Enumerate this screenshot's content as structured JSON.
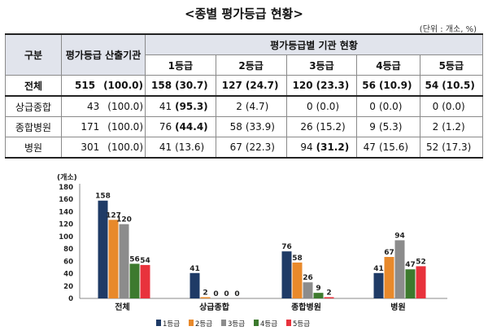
{
  "title": "<종별 평가등급 현황>",
  "unit": "(단위 : 개소, %)",
  "table": {
    "col_category": "구분",
    "col_total": "평가등급 산출기관",
    "col_group": "평가등급별 기관 현황",
    "grades": [
      "1등급",
      "2등급",
      "3등급",
      "4등급",
      "5등급"
    ],
    "rows": [
      {
        "label": "전체",
        "total": "515",
        "total_pct": "(100.0)",
        "cells": [
          [
            "158",
            "(30.7)"
          ],
          [
            "127",
            "(24.7)"
          ],
          [
            "120",
            "(23.3)"
          ],
          [
            "56",
            "(10.9)"
          ],
          [
            "54",
            "(10.5)"
          ]
        ]
      },
      {
        "label": "상급종합",
        "total": "43",
        "total_pct": "(100.0)",
        "cells": [
          [
            "41",
            "(95.3)"
          ],
          [
            "2",
            "(4.7)"
          ],
          [
            "0",
            "(0.0)"
          ],
          [
            "0",
            "(0.0)"
          ],
          [
            "0",
            "(0.0)"
          ]
        ]
      },
      {
        "label": "종합병원",
        "total": "171",
        "total_pct": "(100.0)",
        "cells": [
          [
            "76",
            "(44.4)"
          ],
          [
            "58",
            "(33.9)"
          ],
          [
            "26",
            "(15.2)"
          ],
          [
            "9",
            "(5.3)"
          ],
          [
            "2",
            "(1.2)"
          ]
        ]
      },
      {
        "label": "병원",
        "total": "301",
        "total_pct": "(100.0)",
        "cells": [
          [
            "41",
            "(13.6)"
          ],
          [
            "67",
            "(22.3)"
          ],
          [
            "94",
            "(31.2)"
          ],
          [
            "47",
            "(15.6)"
          ],
          [
            "52",
            "(17.3)"
          ]
        ]
      }
    ]
  },
  "chart_data": {
    "type": "bar",
    "ylabel": "(개소)",
    "ylim": [
      0,
      180
    ],
    "yticks": [
      0,
      20,
      40,
      60,
      80,
      100,
      120,
      140,
      160,
      180
    ],
    "categories": [
      "전체",
      "상급종합",
      "종합병원",
      "병원"
    ],
    "series": [
      {
        "name": "1등급",
        "color": "#1f3b66",
        "values": [
          158,
          41,
          76,
          41
        ]
      },
      {
        "name": "2등급",
        "color": "#e8892b",
        "values": [
          127,
          2,
          58,
          67
        ]
      },
      {
        "name": "3등급",
        "color": "#8c8c8c",
        "values": [
          120,
          0,
          26,
          94
        ]
      },
      {
        "name": "4등급",
        "color": "#3d7a2e",
        "values": [
          56,
          0,
          9,
          47
        ]
      },
      {
        "name": "5등급",
        "color": "#e8323c",
        "values": [
          54,
          0,
          2,
          52
        ]
      }
    ],
    "legend": "bottom-right"
  }
}
